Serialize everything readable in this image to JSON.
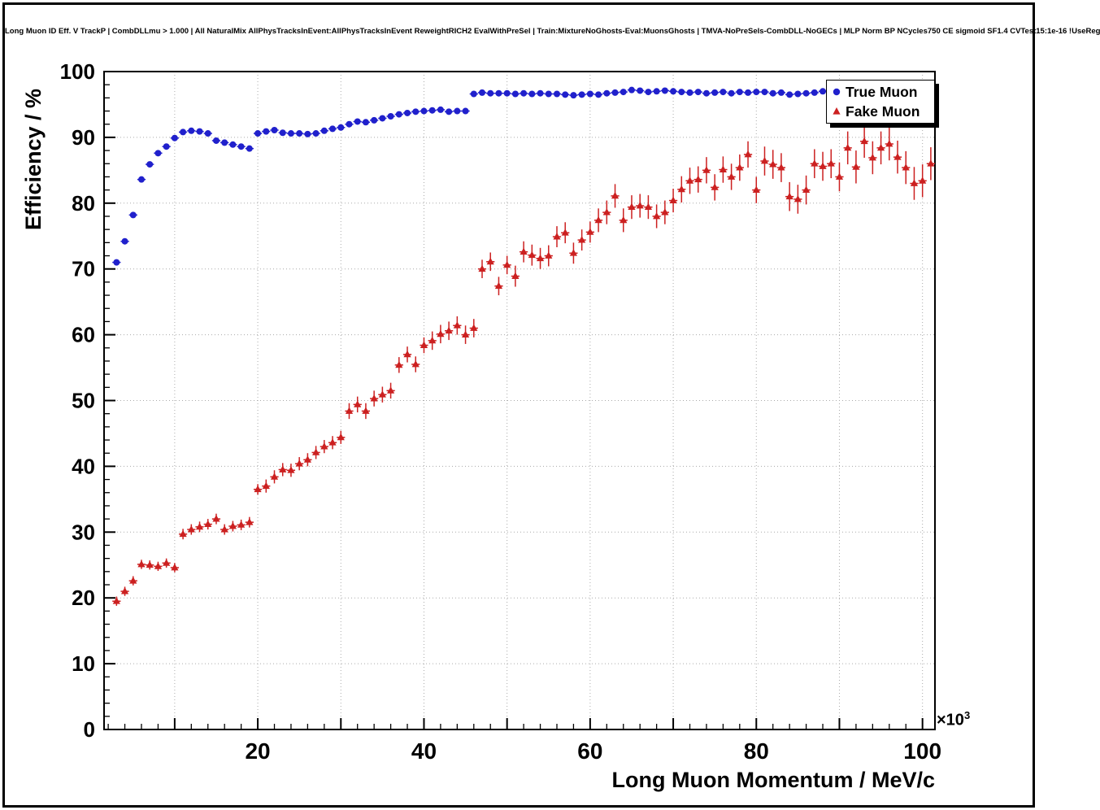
{
  "chart_data": {
    "type": "scatter",
    "title": "Long Muon ID Eff. V TrackP | CombDLLmu > 1.000 | All NaturalMix AllPhysTracksInEvent:AllPhysTracksInEvent ReweightRICH2 EvalWithPreSel | Train:MixtureNoGhosts-Eval:MuonsGhosts | TMVA-NoPreSels-CombDLL-NoGECs | MLP Norm BP NCycles750 CE sigmoid SF1.4 CVTest15:1e-16 !UseReg",
    "xlabel": "Long Muon Momentum / MeV/c",
    "ylabel": "Efficiency / %",
    "x_multiplier_label": "×10",
    "x_multiplier_exp": "3",
    "x_units_scale": 1000,
    "xlim": [
      1.5,
      101.5
    ],
    "ylim": [
      0,
      100
    ],
    "xticks": [
      20,
      40,
      60,
      80,
      100
    ],
    "yticks": [
      0,
      10,
      20,
      30,
      40,
      50,
      60,
      70,
      80,
      90,
      100
    ],
    "grid": "dotted",
    "legend_position": "top-right",
    "series": [
      {
        "name": "True Muon",
        "marker": "circle",
        "color": "#2020cc",
        "xerr": 0.5,
        "yerr": 0.3,
        "x": [
          3,
          4,
          5,
          6,
          7,
          8,
          9,
          10,
          11,
          12,
          13,
          14,
          15,
          16,
          17,
          18,
          19,
          20,
          21,
          22,
          23,
          24,
          25,
          26,
          27,
          28,
          29,
          30,
          31,
          32,
          33,
          34,
          35,
          36,
          37,
          38,
          39,
          40,
          41,
          42,
          43,
          44,
          45,
          46,
          47,
          48,
          49,
          50,
          51,
          52,
          53,
          54,
          55,
          56,
          57,
          58,
          59,
          60,
          61,
          62,
          63,
          64,
          65,
          66,
          67,
          68,
          69,
          70,
          71,
          72,
          73,
          74,
          75,
          76,
          77,
          78,
          79,
          80,
          81,
          82,
          83,
          84,
          85,
          86,
          87,
          88
        ],
        "y": [
          71.0,
          74.2,
          78.2,
          83.6,
          85.9,
          87.6,
          88.6,
          89.9,
          90.8,
          91.0,
          90.9,
          90.6,
          89.5,
          89.2,
          88.9,
          88.6,
          88.3,
          90.6,
          90.9,
          91.1,
          90.7,
          90.6,
          90.6,
          90.5,
          90.6,
          91.0,
          91.3,
          91.5,
          92.0,
          92.4,
          92.3,
          92.6,
          92.9,
          93.2,
          93.5,
          93.7,
          93.9,
          94.0,
          94.1,
          94.2,
          93.9,
          94.0,
          94.0,
          96.6,
          96.8,
          96.7,
          96.7,
          96.7,
          96.6,
          96.7,
          96.6,
          96.7,
          96.6,
          96.6,
          96.5,
          96.4,
          96.5,
          96.6,
          96.5,
          96.7,
          96.8,
          96.9,
          97.2,
          97.1,
          96.9,
          97.0,
          97.1,
          97.0,
          96.9,
          96.8,
          96.9,
          96.7,
          96.8,
          96.9,
          96.7,
          96.9,
          96.8,
          96.9,
          96.9,
          96.7,
          96.8,
          96.5,
          96.6,
          96.7,
          96.8,
          97.0
        ]
      },
      {
        "name": "Fake Muon",
        "marker": "triangle",
        "color": "#cc2020",
        "xerr": 0.5,
        "x": [
          3,
          4,
          5,
          6,
          7,
          8,
          9,
          10,
          11,
          12,
          13,
          14,
          15,
          16,
          17,
          18,
          19,
          20,
          21,
          22,
          23,
          24,
          25,
          26,
          27,
          28,
          29,
          30,
          31,
          32,
          33,
          34,
          35,
          36,
          37,
          38,
          39,
          40,
          41,
          42,
          43,
          44,
          45,
          46,
          47,
          48,
          49,
          50,
          51,
          52,
          53,
          54,
          55,
          56,
          57,
          58,
          59,
          60,
          61,
          62,
          63,
          64,
          65,
          66,
          67,
          68,
          69,
          70,
          71,
          72,
          73,
          74,
          75,
          76,
          77,
          78,
          79,
          80,
          81,
          82,
          83,
          84,
          85,
          86,
          87,
          88,
          89,
          90,
          91,
          92,
          93,
          94,
          95,
          96,
          97,
          98,
          99,
          100,
          101
        ],
        "y": [
          19.5,
          21.0,
          22.6,
          25.1,
          25.0,
          24.8,
          25.3,
          24.6,
          29.7,
          30.4,
          30.8,
          31.2,
          32.0,
          30.4,
          30.9,
          31.1,
          31.5,
          36.5,
          37.0,
          38.4,
          39.5,
          39.4,
          40.4,
          41.0,
          42.1,
          43.0,
          43.6,
          44.4,
          48.4,
          49.4,
          48.4,
          50.3,
          50.9,
          51.5,
          55.4,
          57.0,
          55.5,
          58.4,
          59.1,
          60.1,
          60.6,
          61.4,
          60.0,
          61.0,
          70.0,
          71.1,
          67.4,
          70.6,
          68.9,
          72.6,
          72.1,
          71.6,
          72.0,
          74.9,
          75.5,
          72.4,
          74.4,
          75.6,
          77.4,
          78.6,
          81.1,
          77.4,
          79.4,
          79.6,
          79.4,
          78.0,
          78.6,
          80.4,
          82.1,
          83.4,
          83.6,
          85.0,
          82.4,
          85.1,
          84.0,
          85.4,
          87.4,
          82.0,
          86.4,
          85.9,
          85.4,
          81.0,
          80.6,
          82.0,
          86.0,
          85.6,
          86.0,
          84.0,
          88.4,
          85.5,
          89.4,
          86.9,
          88.4,
          89.0,
          87.0,
          85.4,
          83.0,
          83.4,
          86.0
        ],
        "yerr": [
          0.7,
          0.7,
          0.7,
          0.7,
          0.7,
          0.7,
          0.7,
          0.7,
          0.8,
          0.8,
          0.8,
          0.8,
          0.8,
          0.8,
          0.8,
          0.8,
          0.8,
          0.8,
          1.0,
          1.0,
          1.0,
          1.0,
          1.0,
          1.0,
          1.0,
          1.0,
          1.0,
          1.0,
          1.2,
          1.2,
          1.2,
          1.2,
          1.2,
          1.2,
          1.2,
          1.2,
          1.2,
          1.2,
          1.4,
          1.4,
          1.4,
          1.4,
          1.4,
          1.4,
          1.4,
          1.4,
          1.4,
          1.4,
          1.6,
          1.6,
          1.6,
          1.6,
          1.6,
          1.6,
          1.6,
          1.6,
          1.6,
          1.6,
          1.8,
          1.8,
          1.8,
          1.8,
          1.8,
          1.8,
          1.8,
          1.8,
          1.8,
          1.8,
          2.0,
          2.0,
          2.0,
          2.0,
          2.0,
          2.0,
          2.0,
          2.0,
          2.0,
          2.0,
          2.2,
          2.2,
          2.2,
          2.2,
          2.2,
          2.2,
          2.2,
          2.2,
          2.2,
          2.2,
          2.5,
          2.5,
          2.5,
          2.5,
          2.5,
          2.5,
          2.5,
          2.5,
          2.5,
          2.5,
          2.5
        ]
      }
    ]
  },
  "colors": {
    "grid": "#aaaaaa",
    "axis": "#000000",
    "background": "#ffffff"
  }
}
